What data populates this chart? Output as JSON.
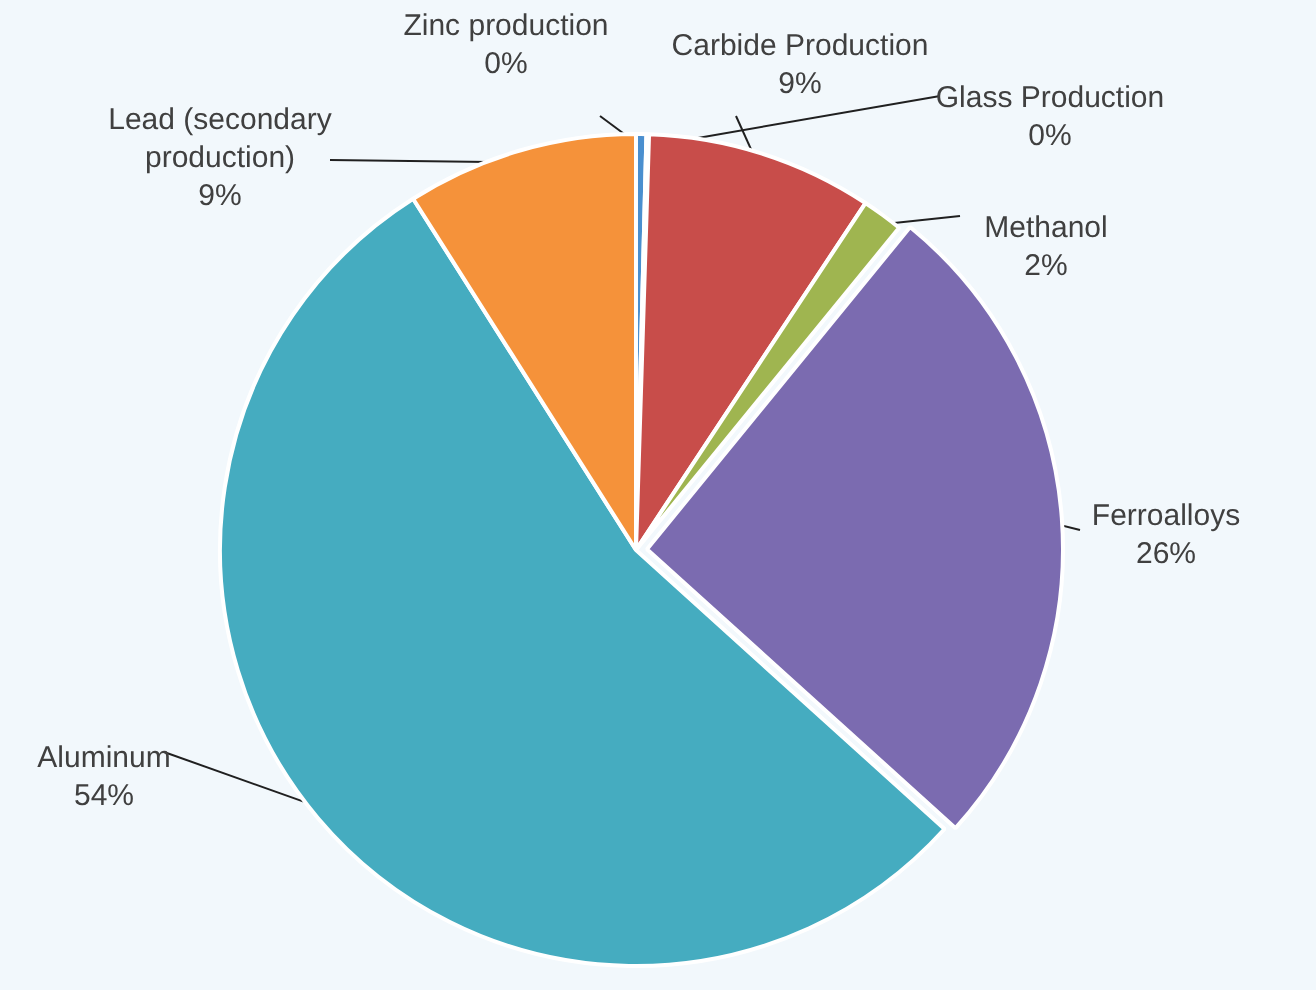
{
  "chart_data": {
    "type": "pie",
    "categories": [
      "Zinc production",
      "Glass Production",
      "Carbide Production",
      "Methanol",
      "Ferroalloys",
      "Aluminum",
      "Lead (secondary production)"
    ],
    "values": [
      0.4,
      0.1,
      8.8,
      1.6,
      25.8,
      54.3,
      9.0
    ],
    "value_labels": [
      "0%",
      "0%",
      "9%",
      "2%",
      "26%",
      "54%",
      "9%"
    ],
    "colors": [
      "#4a8fcf",
      "#9bbb59",
      "#c84d4a",
      "#9fb550",
      "#7b6bb0",
      "#45acc0",
      "#f5923a"
    ],
    "legend": false
  }
}
